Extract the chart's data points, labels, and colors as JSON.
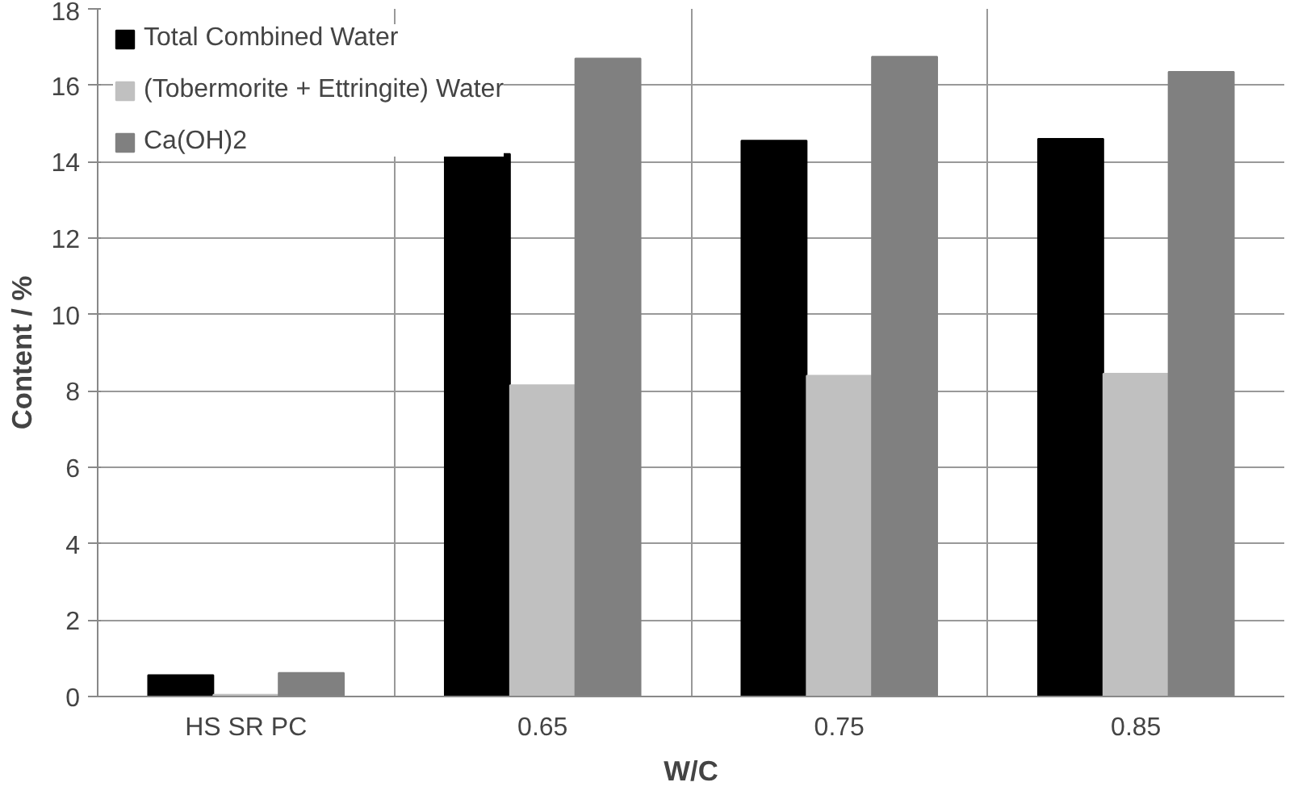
{
  "chart_data": {
    "type": "bar",
    "xlabel": "W/C",
    "ylabel": "Content / %",
    "categories": [
      "HS SR PC",
      "0.65",
      "0.75",
      "0.85"
    ],
    "series": [
      {
        "name": "Total Combined Water",
        "color": "#000000",
        "values": [
          0.56,
          14.2,
          14.55,
          14.6
        ]
      },
      {
        "name": "(Tobermorite + Ettringite) Water",
        "color": "#c0c0c0",
        "values": [
          0.05,
          8.15,
          8.4,
          8.45
        ]
      },
      {
        "name": "Ca(OH)2",
        "color": "#808080",
        "values": [
          0.62,
          16.7,
          16.75,
          16.35
        ]
      }
    ],
    "ylim": [
      0,
      18
    ],
    "yticks": [
      0,
      2,
      4,
      6,
      8,
      10,
      12,
      14,
      16,
      18
    ],
    "grid": true,
    "legend": "top left"
  }
}
